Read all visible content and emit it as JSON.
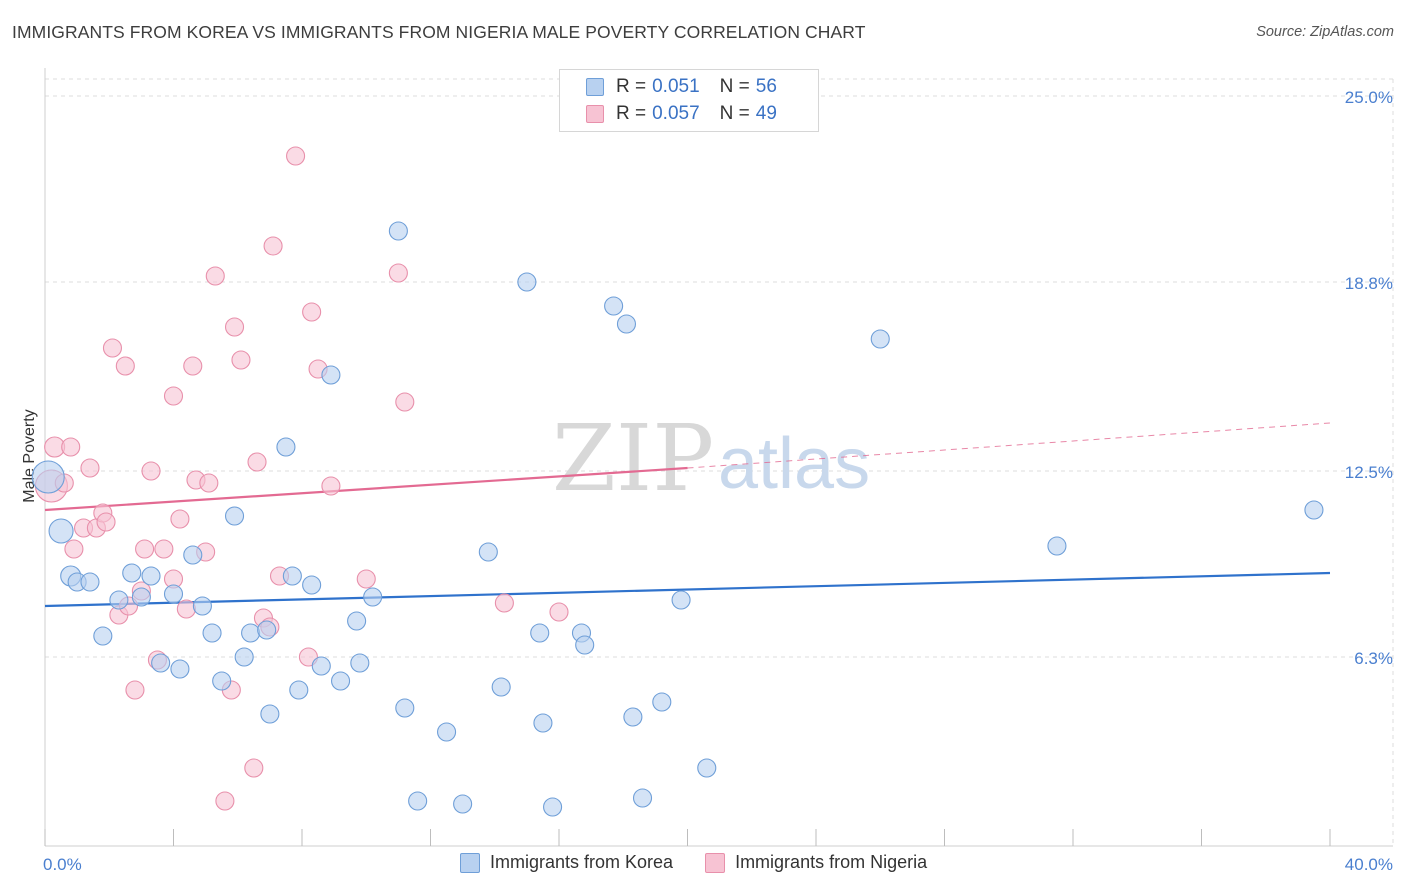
{
  "header": {
    "title": "IMMIGRANTS FROM KOREA VS IMMIGRANTS FROM NIGERIA MALE POVERTY CORRELATION CHART",
    "source": "Source: ZipAtlas.com"
  },
  "legend": {
    "korea": {
      "r_label": "R =",
      "r_value": "0.051",
      "n_label": "N =",
      "n_value": "56"
    },
    "nigeria": {
      "r_label": "R =",
      "r_value": "0.057",
      "n_label": "N =",
      "n_value": "49"
    }
  },
  "watermark": {
    "zip": "ZIP",
    "atlas": "atlas"
  },
  "colors": {
    "korea_fill": "#b8d1f0",
    "korea_stroke": "#6f9fd8",
    "korea_line": "#2f72cc",
    "nigeria_fill": "#f7c3d3",
    "nigeria_stroke": "#e890ab",
    "nigeria_line": "#e36a92",
    "grid": "#dcdcdc",
    "tick_text": "#4a7fcf"
  },
  "chart_data": {
    "type": "scatter",
    "title": "IMMIGRANTS FROM KOREA VS IMMIGRANTS FROM NIGERIA MALE POVERTY CORRELATION CHART",
    "xlabel": "",
    "ylabel": "Male Poverty",
    "xlim": [
      0,
      40
    ],
    "ylim": [
      0,
      25
    ],
    "x_tick_labels": [
      "0.0%",
      "40.0%"
    ],
    "y_ticks": [
      6.3,
      12.5,
      18.8,
      25.0
    ],
    "y_tick_labels": [
      "6.3%",
      "12.5%",
      "18.8%",
      "25.0%"
    ],
    "grid": true,
    "legend_position": "top-center",
    "series": [
      {
        "name": "Immigrants from Korea",
        "color": "#6f9fd8",
        "trend": {
          "x": [
            0,
            40
          ],
          "y": [
            8.0,
            9.1
          ]
        },
        "points": [
          {
            "x": 0.1,
            "y": 12.3,
            "s": 16
          },
          {
            "x": 0.5,
            "y": 10.5,
            "s": 12
          },
          {
            "x": 0.8,
            "y": 9.0,
            "s": 10
          },
          {
            "x": 1.0,
            "y": 8.8,
            "s": 9
          },
          {
            "x": 1.4,
            "y": 8.8,
            "s": 9
          },
          {
            "x": 1.8,
            "y": 7.0,
            "s": 9
          },
          {
            "x": 2.3,
            "y": 8.2,
            "s": 9
          },
          {
            "x": 2.7,
            "y": 9.1,
            "s": 9
          },
          {
            "x": 3.0,
            "y": 8.3,
            "s": 9
          },
          {
            "x": 3.3,
            "y": 9.0,
            "s": 9
          },
          {
            "x": 3.6,
            "y": 6.1,
            "s": 9
          },
          {
            "x": 4.0,
            "y": 8.4,
            "s": 9
          },
          {
            "x": 4.2,
            "y": 5.9,
            "s": 9
          },
          {
            "x": 4.6,
            "y": 9.7,
            "s": 9
          },
          {
            "x": 4.9,
            "y": 8.0,
            "s": 9
          },
          {
            "x": 5.2,
            "y": 7.1,
            "s": 9
          },
          {
            "x": 5.5,
            "y": 5.5,
            "s": 9
          },
          {
            "x": 5.9,
            "y": 11.0,
            "s": 9
          },
          {
            "x": 6.2,
            "y": 6.3,
            "s": 9
          },
          {
            "x": 6.4,
            "y": 7.1,
            "s": 9
          },
          {
            "x": 6.9,
            "y": 7.2,
            "s": 9
          },
          {
            "x": 7.0,
            "y": 4.4,
            "s": 9
          },
          {
            "x": 7.5,
            "y": 13.3,
            "s": 9
          },
          {
            "x": 7.7,
            "y": 9.0,
            "s": 9
          },
          {
            "x": 7.9,
            "y": 5.2,
            "s": 9
          },
          {
            "x": 8.3,
            "y": 8.7,
            "s": 9
          },
          {
            "x": 8.6,
            "y": 6.0,
            "s": 9
          },
          {
            "x": 8.9,
            "y": 15.7,
            "s": 9
          },
          {
            "x": 9.2,
            "y": 5.5,
            "s": 9
          },
          {
            "x": 9.7,
            "y": 7.5,
            "s": 9
          },
          {
            "x": 9.8,
            "y": 6.1,
            "s": 9
          },
          {
            "x": 10.2,
            "y": 8.3,
            "s": 9
          },
          {
            "x": 11.0,
            "y": 20.5,
            "s": 9
          },
          {
            "x": 11.2,
            "y": 4.6,
            "s": 9
          },
          {
            "x": 11.6,
            "y": 1.5,
            "s": 9
          },
          {
            "x": 12.5,
            "y": 3.8,
            "s": 9
          },
          {
            "x": 13.0,
            "y": 1.4,
            "s": 9
          },
          {
            "x": 13.8,
            "y": 9.8,
            "s": 9
          },
          {
            "x": 14.2,
            "y": 5.3,
            "s": 9
          },
          {
            "x": 15.0,
            "y": 18.8,
            "s": 9
          },
          {
            "x": 15.4,
            "y": 7.1,
            "s": 9
          },
          {
            "x": 15.5,
            "y": 4.1,
            "s": 9
          },
          {
            "x": 15.8,
            "y": 1.3,
            "s": 9
          },
          {
            "x": 16.7,
            "y": 7.1,
            "s": 9
          },
          {
            "x": 16.8,
            "y": 6.7,
            "s": 9
          },
          {
            "x": 17.7,
            "y": 18.0,
            "s": 9
          },
          {
            "x": 18.1,
            "y": 17.4,
            "s": 9
          },
          {
            "x": 18.3,
            "y": 4.3,
            "s": 9
          },
          {
            "x": 18.6,
            "y": 1.6,
            "s": 9
          },
          {
            "x": 19.2,
            "y": 4.8,
            "s": 9
          },
          {
            "x": 19.8,
            "y": 8.2,
            "s": 9
          },
          {
            "x": 20.6,
            "y": 2.6,
            "s": 9
          },
          {
            "x": 26.0,
            "y": 16.9,
            "s": 9
          },
          {
            "x": 31.5,
            "y": 10.0,
            "s": 9
          },
          {
            "x": 39.5,
            "y": 11.2,
            "s": 9
          }
        ]
      },
      {
        "name": "Immigrants from Nigeria",
        "color": "#e890ab",
        "trend": {
          "x": [
            0,
            20.0,
            40
          ],
          "y": [
            11.2,
            12.6,
            14.1
          ],
          "solid_until_x": 20.0
        },
        "points": [
          {
            "x": 0.2,
            "y": 12.0,
            "s": 16
          },
          {
            "x": 0.3,
            "y": 13.3,
            "s": 10
          },
          {
            "x": 0.6,
            "y": 12.1,
            "s": 9
          },
          {
            "x": 0.8,
            "y": 13.3,
            "s": 9
          },
          {
            "x": 0.9,
            "y": 9.9,
            "s": 9
          },
          {
            "x": 1.2,
            "y": 10.6,
            "s": 9
          },
          {
            "x": 1.4,
            "y": 12.6,
            "s": 9
          },
          {
            "x": 1.6,
            "y": 10.6,
            "s": 9
          },
          {
            "x": 1.8,
            "y": 11.1,
            "s": 9
          },
          {
            "x": 1.9,
            "y": 10.8,
            "s": 9
          },
          {
            "x": 2.1,
            "y": 16.6,
            "s": 9
          },
          {
            "x": 2.3,
            "y": 7.7,
            "s": 9
          },
          {
            "x": 2.5,
            "y": 16.0,
            "s": 9
          },
          {
            "x": 2.6,
            "y": 8.0,
            "s": 9
          },
          {
            "x": 2.8,
            "y": 5.2,
            "s": 9
          },
          {
            "x": 3.0,
            "y": 8.5,
            "s": 9
          },
          {
            "x": 3.1,
            "y": 9.9,
            "s": 9
          },
          {
            "x": 3.3,
            "y": 12.5,
            "s": 9
          },
          {
            "x": 3.5,
            "y": 6.2,
            "s": 9
          },
          {
            "x": 3.7,
            "y": 9.9,
            "s": 9
          },
          {
            "x": 4.0,
            "y": 15.0,
            "s": 9
          },
          {
            "x": 4.0,
            "y": 8.9,
            "s": 9
          },
          {
            "x": 4.2,
            "y": 10.9,
            "s": 9
          },
          {
            "x": 4.4,
            "y": 7.9,
            "s": 9
          },
          {
            "x": 4.6,
            "y": 16.0,
            "s": 9
          },
          {
            "x": 4.7,
            "y": 12.2,
            "s": 9
          },
          {
            "x": 5.0,
            "y": 9.8,
            "s": 9
          },
          {
            "x": 5.1,
            "y": 12.1,
            "s": 9
          },
          {
            "x": 5.3,
            "y": 19.0,
            "s": 9
          },
          {
            "x": 5.6,
            "y": 1.5,
            "s": 9
          },
          {
            "x": 5.8,
            "y": 5.2,
            "s": 9
          },
          {
            "x": 5.9,
            "y": 17.3,
            "s": 9
          },
          {
            "x": 6.1,
            "y": 16.2,
            "s": 9
          },
          {
            "x": 6.5,
            "y": 2.6,
            "s": 9
          },
          {
            "x": 6.6,
            "y": 12.8,
            "s": 9
          },
          {
            "x": 6.8,
            "y": 7.6,
            "s": 9
          },
          {
            "x": 7.0,
            "y": 7.3,
            "s": 9
          },
          {
            "x": 7.1,
            "y": 20.0,
            "s": 9
          },
          {
            "x": 7.3,
            "y": 9.0,
            "s": 9
          },
          {
            "x": 7.8,
            "y": 23.0,
            "s": 9
          },
          {
            "x": 8.2,
            "y": 6.3,
            "s": 9
          },
          {
            "x": 8.3,
            "y": 17.8,
            "s": 9
          },
          {
            "x": 8.5,
            "y": 15.9,
            "s": 9
          },
          {
            "x": 8.9,
            "y": 12.0,
            "s": 9
          },
          {
            "x": 10.0,
            "y": 8.9,
            "s": 9
          },
          {
            "x": 11.0,
            "y": 19.1,
            "s": 9
          },
          {
            "x": 11.2,
            "y": 14.8,
            "s": 9
          },
          {
            "x": 14.3,
            "y": 8.1,
            "s": 9
          },
          {
            "x": 16.0,
            "y": 7.8,
            "s": 9
          }
        ]
      }
    ]
  }
}
